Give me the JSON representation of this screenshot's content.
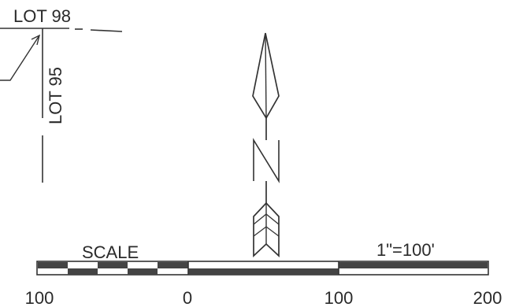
{
  "labels": {
    "lot_98": "LOT 98",
    "lot_95": "LOT 95",
    "north_letter": "N",
    "scale_title": "SCALE",
    "scale_ratio": "1\"=100'"
  },
  "scale_bar": {
    "ticks": [
      "100",
      "0",
      "100",
      "200"
    ]
  },
  "colors": {
    "ink": "#333333",
    "fill_dark": "#444444",
    "paper": "#ffffff"
  }
}
